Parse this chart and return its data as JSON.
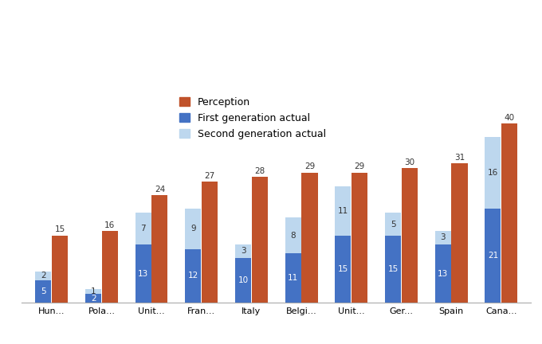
{
  "categories": [
    "Hun...",
    "Pola...",
    "Unit...",
    "Fran...",
    "Italy",
    "Belgi...",
    "Unit...",
    "Ger...",
    "Spain",
    "Cana..."
  ],
  "perception": [
    15,
    16,
    24,
    27,
    28,
    29,
    29,
    30,
    31,
    40
  ],
  "first_gen": [
    5,
    2,
    13,
    12,
    10,
    11,
    15,
    15,
    13,
    21
  ],
  "second_gen": [
    2,
    1,
    7,
    9,
    3,
    8,
    11,
    5,
    3,
    16
  ],
  "perception_color": "#C0522A",
  "first_gen_color": "#4472C4",
  "second_gen_color": "#BDD7EE",
  "legend_labels": [
    "Perception",
    "First generation actual",
    "Second generation actual"
  ],
  "background_color": "#FFFFFF",
  "bar_width": 0.32,
  "bar_gap": 0.01,
  "ylim": [
    0,
    46
  ],
  "label_fontsize": 7.5,
  "tick_fontsize": 8,
  "legend_fontsize": 9
}
